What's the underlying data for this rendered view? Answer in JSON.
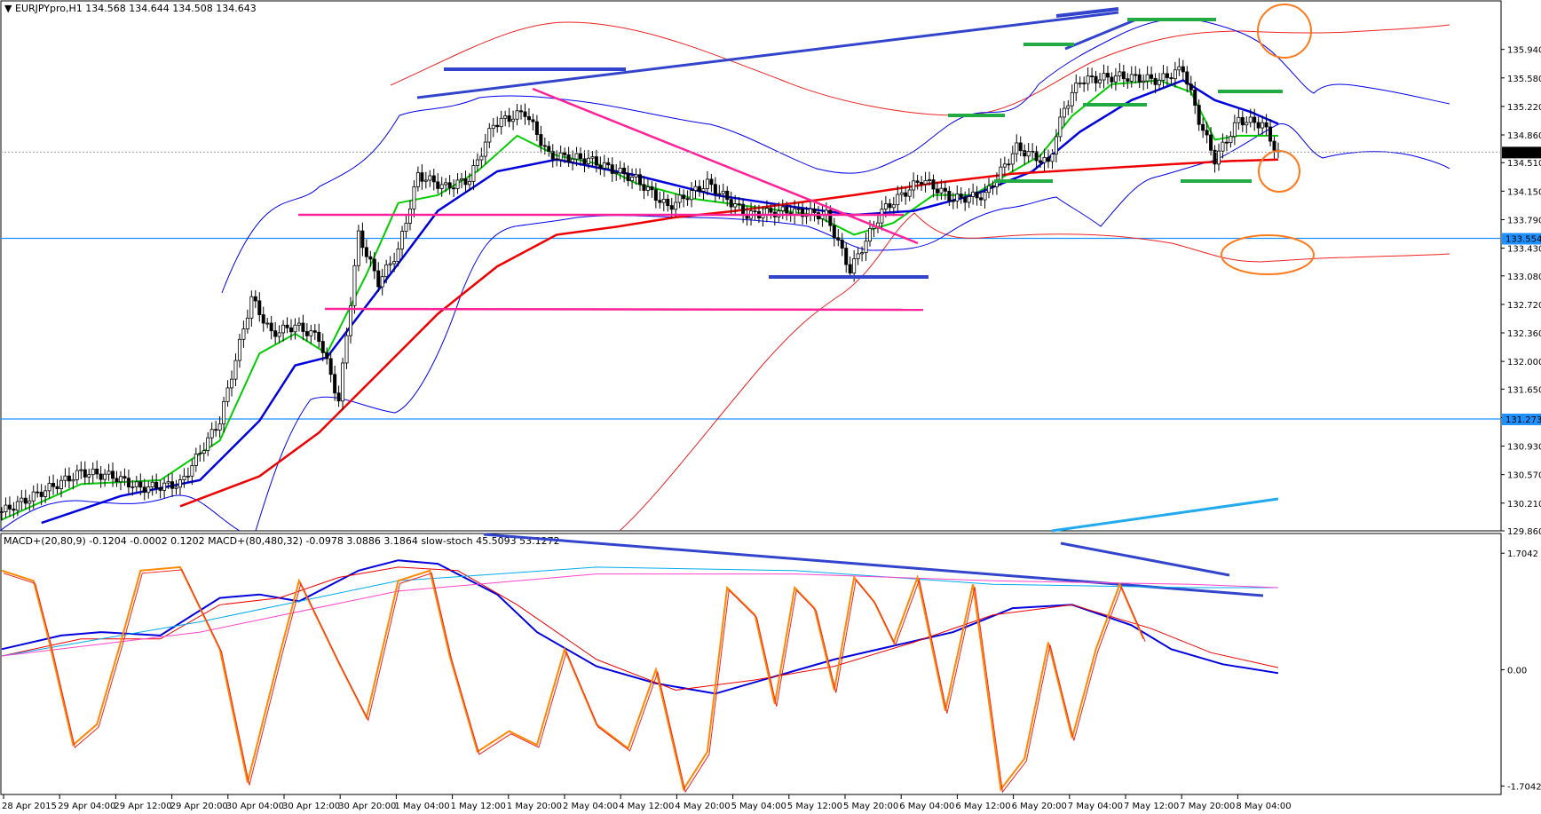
{
  "chart_data": [
    {
      "type": "candlestick",
      "header": "EURJPYpro,H1  134.568 134.644 134.508 134.643",
      "y_ticks": [
        "135.940",
        "135.580",
        "135.220",
        "134.860",
        "134.510",
        "134.150",
        "133.790",
        "133.430",
        "133.080",
        "132.720",
        "132.360",
        "132.000",
        "131.650",
        "131.290",
        "130.930",
        "130.570",
        "130.210",
        "129.860"
      ],
      "ylim": [
        129.86,
        136.34
      ],
      "current_price": {
        "label": "134.643",
        "value": 134.643
      },
      "hlines": [
        {
          "label": "133.554",
          "value": 133.554,
          "color": "#1e90ff"
        },
        {
          "label": "131.273",
          "value": 131.273,
          "color": "#1e90ff"
        }
      ],
      "x_ticks": [
        "28 Apr 2015",
        "29 Apr 04:00",
        "29 Apr 12:00",
        "29 Apr 20:00",
        "30 Apr 04:00",
        "30 Apr 12:00",
        "30 Apr 20:00",
        "1 May 04:00",
        "1 May 12:00",
        "1 May 20:00",
        "2 May 04:00",
        "4 May 12:00",
        "4 May 20:00",
        "5 May 04:00",
        "5 May 12:00",
        "5 May 20:00",
        "6 May 04:00",
        "6 May 12:00",
        "6 May 20:00",
        "7 May 04:00",
        "7 May 12:00",
        "7 May 20:00",
        "8 May 04:00"
      ],
      "price_path": [
        [
          0,
          130.1
        ],
        [
          10,
          130.35
        ],
        [
          20,
          130.6
        ],
        [
          28,
          130.55
        ],
        [
          35,
          130.4
        ],
        [
          45,
          130.45
        ],
        [
          55,
          131.25
        ],
        [
          63,
          132.8
        ],
        [
          68,
          132.35
        ],
        [
          74,
          132.45
        ],
        [
          80,
          132.3
        ],
        [
          85,
          131.5
        ],
        [
          90,
          133.6
        ],
        [
          95,
          133.0
        ],
        [
          100,
          133.4
        ],
        [
          105,
          134.35
        ],
        [
          112,
          134.2
        ],
        [
          118,
          134.3
        ],
        [
          124,
          135.0
        ],
        [
          132,
          135.15
        ],
        [
          138,
          134.6
        ],
        [
          148,
          134.55
        ],
        [
          160,
          134.3
        ],
        [
          168,
          133.95
        ],
        [
          178,
          134.25
        ],
        [
          188,
          133.85
        ],
        [
          198,
          133.9
        ],
        [
          208,
          133.85
        ],
        [
          214,
          133.15
        ],
        [
          222,
          133.9
        ],
        [
          232,
          134.3
        ],
        [
          240,
          134.05
        ],
        [
          248,
          134.1
        ],
        [
          256,
          134.7
        ],
        [
          264,
          134.5
        ],
        [
          268,
          135.2
        ],
        [
          272,
          135.55
        ],
        [
          282,
          135.6
        ],
        [
          292,
          135.55
        ],
        [
          298,
          135.7
        ],
        [
          302,
          135.05
        ],
        [
          306,
          134.55
        ],
        [
          312,
          135.05
        ],
        [
          318,
          135.0
        ],
        [
          322,
          134.62
        ]
      ],
      "series": [
        {
          "name": "",
          "color": "#00cc00",
          "points": [
            [
              0,
              130.0
            ],
            [
              20,
              130.45
            ],
            [
              40,
              130.5
            ],
            [
              55,
              131.0
            ],
            [
              65,
              132.1
            ],
            [
              74,
              132.35
            ],
            [
              82,
              132.1
            ],
            [
              92,
              133.1
            ],
            [
              100,
              134.0
            ],
            [
              110,
              134.1
            ],
            [
              120,
              134.4
            ],
            [
              130,
              134.85
            ],
            [
              140,
              134.6
            ],
            [
              150,
              134.5
            ],
            [
              160,
              134.25
            ],
            [
              175,
              134.05
            ],
            [
              190,
              133.95
            ],
            [
              205,
              133.85
            ],
            [
              215,
              133.6
            ],
            [
              225,
              133.75
            ],
            [
              235,
              134.1
            ],
            [
              245,
              134.1
            ],
            [
              255,
              134.4
            ],
            [
              262,
              134.6
            ],
            [
              270,
              135.1
            ],
            [
              280,
              135.5
            ],
            [
              292,
              135.55
            ],
            [
              300,
              135.4
            ],
            [
              306,
              134.8
            ],
            [
              312,
              134.85
            ],
            [
              322,
              134.85
            ]
          ]
        },
        {
          "name": "",
          "color": "#0000dd",
          "points": [
            [
              10,
              129.96
            ],
            [
              30,
              130.3
            ],
            [
              50,
              130.5
            ],
            [
              65,
              131.25
            ],
            [
              74,
              131.95
            ],
            [
              82,
              132.05
            ],
            [
              95,
              132.9
            ],
            [
              110,
              133.9
            ],
            [
              125,
              134.4
            ],
            [
              140,
              134.55
            ],
            [
              160,
              134.35
            ],
            [
              180,
              134.1
            ],
            [
              200,
              133.95
            ],
            [
              215,
              133.85
            ],
            [
              230,
              133.9
            ],
            [
              245,
              134.1
            ],
            [
              260,
              134.4
            ],
            [
              272,
              134.9
            ],
            [
              285,
              135.3
            ],
            [
              298,
              135.55
            ],
            [
              306,
              135.3
            ],
            [
              315,
              135.15
            ],
            [
              322,
              135.0
            ]
          ]
        },
        {
          "name": "",
          "color": "#ee0000",
          "points": [
            [
              45,
              130.17
            ],
            [
              65,
              130.55
            ],
            [
              80,
              131.1
            ],
            [
              95,
              131.85
            ],
            [
              110,
              132.6
            ],
            [
              125,
              133.2
            ],
            [
              140,
              133.6
            ],
            [
              155,
              133.7
            ],
            [
              170,
              133.82
            ],
            [
              185,
              133.9
            ],
            [
              200,
              134.0
            ],
            [
              215,
              134.1
            ],
            [
              235,
              134.25
            ],
            [
              255,
              134.37
            ],
            [
              275,
              134.43
            ],
            [
              295,
              134.49
            ],
            [
              310,
              134.53
            ],
            [
              322,
              134.55
            ]
          ]
        }
      ]
    },
    {
      "type": "line",
      "header": "MACD+(20,80,9) -0.1204 -0.0002 0.1202  MACD+(80,480,32) -0.0978 3.0886 3.1864  slow-stoch 45.5093 53.1272",
      "y_ticks": [
        "1.7042",
        "0.00",
        "-1.7042"
      ],
      "ylim": [
        -1.8,
        1.85
      ],
      "series": [
        {
          "name": "",
          "color": "#0000dd",
          "points": [
            [
              0,
              0.3
            ],
            [
              15,
              0.5
            ],
            [
              25,
              0.55
            ],
            [
              40,
              0.5
            ],
            [
              55,
              1.05
            ],
            [
              65,
              1.1
            ],
            [
              75,
              1.0
            ],
            [
              90,
              1.45
            ],
            [
              100,
              1.6
            ],
            [
              110,
              1.55
            ],
            [
              125,
              1.1
            ],
            [
              135,
              0.55
            ],
            [
              150,
              0.05
            ],
            [
              165,
              -0.2
            ],
            [
              180,
              -0.35
            ],
            [
              195,
              -0.1
            ],
            [
              210,
              0.15
            ],
            [
              225,
              0.35
            ],
            [
              240,
              0.55
            ],
            [
              255,
              0.9
            ],
            [
              270,
              0.95
            ],
            [
              285,
              0.65
            ],
            [
              295,
              0.3
            ],
            [
              308,
              0.08
            ],
            [
              322,
              -0.05
            ]
          ]
        },
        {
          "name": "",
          "color": "#ee0000",
          "points": [
            [
              0,
              0.2
            ],
            [
              20,
              0.45
            ],
            [
              40,
              0.45
            ],
            [
              55,
              0.95
            ],
            [
              70,
              1.05
            ],
            [
              85,
              1.35
            ],
            [
              100,
              1.5
            ],
            [
              115,
              1.45
            ],
            [
              130,
              0.95
            ],
            [
              150,
              0.15
            ],
            [
              170,
              -0.3
            ],
            [
              190,
              -0.15
            ],
            [
              210,
              0.05
            ],
            [
              230,
              0.4
            ],
            [
              250,
              0.8
            ],
            [
              270,
              0.95
            ],
            [
              290,
              0.6
            ],
            [
              305,
              0.25
            ],
            [
              322,
              0.03
            ]
          ]
        },
        {
          "name": "",
          "color": "#00aaee",
          "points": [
            [
              0,
              0.2
            ],
            [
              50,
              0.7
            ],
            [
              100,
              1.3
            ],
            [
              150,
              1.5
            ],
            [
              200,
              1.45
            ],
            [
              250,
              1.25
            ],
            [
              300,
              1.2
            ],
            [
              322,
              1.2
            ]
          ]
        },
        {
          "name": "",
          "color": "#ff44cc",
          "points": [
            [
              0,
              0.2
            ],
            [
              50,
              0.55
            ],
            [
              100,
              1.15
            ],
            [
              150,
              1.4
            ],
            [
              200,
              1.4
            ],
            [
              250,
              1.3
            ],
            [
              300,
              1.25
            ],
            [
              322,
              1.2
            ]
          ]
        },
        {
          "name": "",
          "color": "#ff8800",
          "points": [
            [
              0,
              1.45
            ],
            [
              8,
              1.3
            ],
            [
              12,
              0.4
            ],
            [
              18,
              -1.1
            ],
            [
              24,
              -0.8
            ],
            [
              30,
              0.4
            ],
            [
              35,
              1.45
            ],
            [
              45,
              1.5
            ],
            [
              55,
              0.3
            ],
            [
              62,
              -1.65
            ],
            [
              70,
              0.2
            ],
            [
              75,
              1.3
            ],
            [
              85,
              0.1
            ],
            [
              92,
              -0.7
            ],
            [
              100,
              1.3
            ],
            [
              108,
              1.45
            ],
            [
              113,
              0.2
            ],
            [
              120,
              -1.2
            ],
            [
              128,
              -0.9
            ],
            [
              135,
              -1.1
            ],
            [
              142,
              0.3
            ],
            [
              150,
              -0.8
            ],
            [
              158,
              -1.15
            ],
            [
              165,
              0.0
            ],
            [
              172,
              -1.75
            ],
            [
              178,
              -1.2
            ],
            [
              183,
              1.2
            ],
            [
              190,
              0.8
            ],
            [
              195,
              -0.5
            ],
            [
              200,
              1.2
            ],
            [
              205,
              0.9
            ],
            [
              210,
              -0.3
            ],
            [
              215,
              1.35
            ],
            [
              220,
              1.0
            ],
            [
              225,
              0.4
            ],
            [
              231,
              1.35
            ],
            [
              238,
              -0.6
            ],
            [
              245,
              1.25
            ],
            [
              252,
              -1.75
            ],
            [
              258,
              -1.3
            ],
            [
              264,
              0.4
            ],
            [
              270,
              -1.0
            ],
            [
              276,
              0.3
            ],
            [
              282,
              1.25
            ],
            [
              288,
              0.45
            ]
          ]
        }
      ]
    }
  ]
}
